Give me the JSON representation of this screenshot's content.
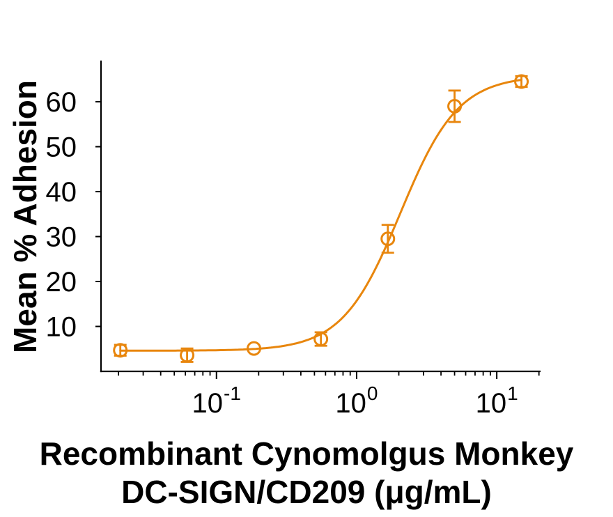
{
  "chart_data": {
    "type": "scatter",
    "title_lines": [
      "Recombinant Cynomolgus Monkey",
      "DC-SIGN/CD209 (μg/mL)"
    ],
    "xlabel": "Recombinant Cynomolgus Monkey DC-SIGN/CD209 (μg/mL)",
    "ylabel": "Mean % Adhesion",
    "x_scale": "log",
    "x_domain": [
      0.015,
      20.3
    ],
    "y_domain": [
      0,
      69
    ],
    "y_ticks": [
      10,
      20,
      30,
      40,
      50,
      60
    ],
    "x_major_ticks": [
      {
        "value": 0.1,
        "base": "10",
        "exponent": "-1"
      },
      {
        "value": 1,
        "base": "10",
        "exponent": "0"
      },
      {
        "value": 10,
        "base": "10",
        "exponent": "1"
      }
    ],
    "points": {
      "x": [
        0.0206,
        0.0617,
        0.185,
        0.556,
        1.67,
        5.0,
        15.0
      ],
      "y": [
        4.7,
        3.6,
        5.1,
        7.2,
        29.5,
        59.0,
        64.5
      ],
      "yerr": [
        1.2,
        1.5,
        0,
        1.5,
        3.1,
        3.5,
        1.2
      ]
    },
    "fit_curve": {
      "model": "4PL",
      "bottom": 4.6,
      "top": 65.8,
      "ec50": 2.05,
      "hill": 2.1
    },
    "series_color": "#E8860D",
    "axis_color": "#000000",
    "background": "#ffffff",
    "grid": false,
    "legend": false
  }
}
